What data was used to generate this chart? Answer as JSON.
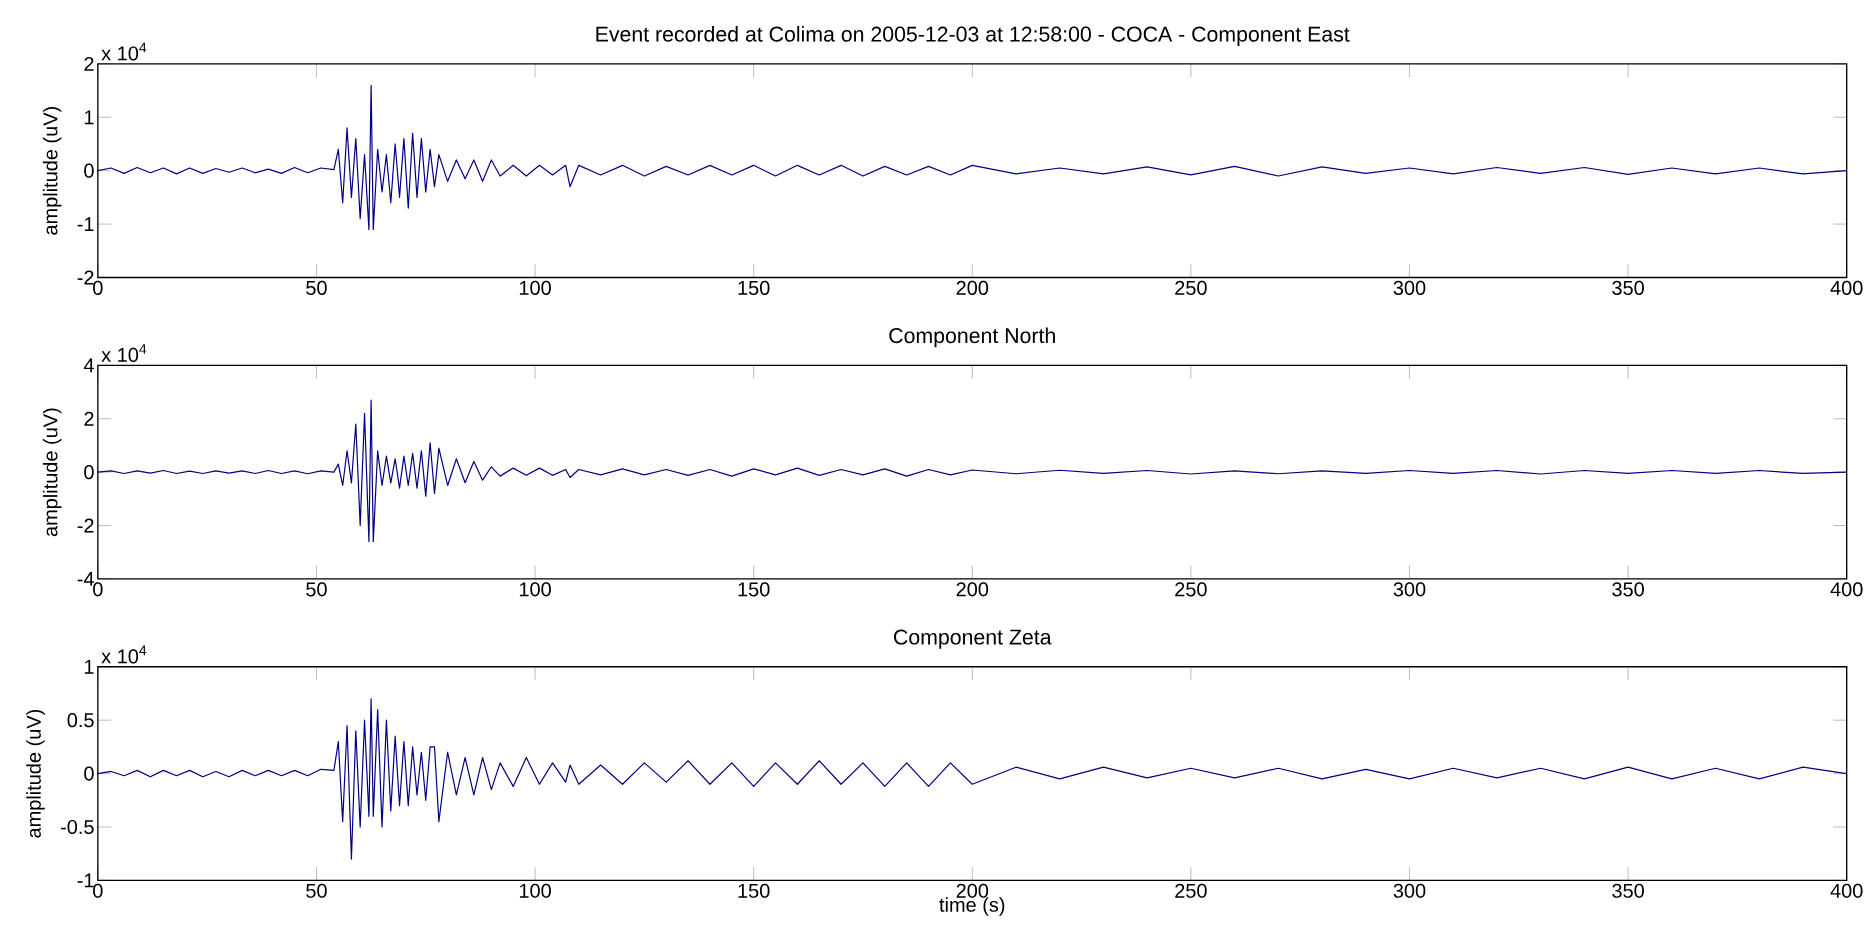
{
  "chart_data": [
    {
      "type": "line",
      "title": "Event recorded at Colima on 2005-12-03 at 12:58:00 - COCA - Component East",
      "ylabel": "amplitude (uV)",
      "annotations": [
        "x 10$^{4}$"
      ],
      "xlim": [
        0,
        400
      ],
      "ylim": [
        -2,
        2
      ],
      "xticks": [
        0,
        50,
        100,
        150,
        200,
        250,
        300,
        350,
        400
      ],
      "yticks": [
        -2,
        -1,
        0,
        1,
        2
      ],
      "x": [
        0,
        3,
        6,
        9,
        12,
        15,
        18,
        21,
        24,
        27,
        30,
        33,
        36,
        39,
        42,
        45,
        48,
        51,
        54,
        55,
        56,
        57,
        58,
        59,
        60,
        61,
        62,
        62.5,
        63,
        64,
        65,
        66,
        67,
        68,
        69,
        70,
        71,
        72,
        73,
        74,
        75,
        76,
        77,
        78,
        80,
        82,
        84,
        86,
        88,
        90,
        92,
        95,
        98,
        101,
        104,
        107,
        108,
        110,
        115,
        120,
        125,
        130,
        135,
        140,
        145,
        150,
        155,
        160,
        165,
        170,
        175,
        180,
        185,
        190,
        195,
        200,
        210,
        220,
        230,
        240,
        250,
        260,
        270,
        280,
        290,
        300,
        310,
        320,
        330,
        340,
        350,
        360,
        370,
        380,
        390,
        400
      ],
      "series": [
        {
          "color": "#000080",
          "values": [
            0,
            0.05,
            -0.05,
            0.06,
            -0.04,
            0.05,
            -0.06,
            0.05,
            -0.05,
            0.04,
            -0.03,
            0.05,
            -0.04,
            0.03,
            -0.05,
            0.06,
            -0.04,
            0.05,
            0.02,
            0.4,
            -0.6,
            0.8,
            -0.5,
            0.6,
            -0.9,
            0.3,
            -1.1,
            1.6,
            -1.1,
            0.4,
            -0.4,
            0.3,
            -0.6,
            0.5,
            -0.5,
            0.6,
            -0.7,
            0.7,
            -0.5,
            0.6,
            -0.4,
            0.4,
            -0.3,
            0.3,
            -0.2,
            0.2,
            -0.15,
            0.2,
            -0.2,
            0.2,
            -0.1,
            0.1,
            -0.1,
            0.1,
            -0.08,
            0.1,
            -0.3,
            0.1,
            -0.08,
            0.1,
            -0.1,
            0.08,
            -0.08,
            0.1,
            -0.08,
            0.1,
            -0.1,
            0.1,
            -0.08,
            0.1,
            -0.1,
            0.08,
            -0.08,
            0.08,
            -0.08,
            0.1,
            -0.06,
            0.05,
            -0.06,
            0.07,
            -0.08,
            0.08,
            -0.1,
            0.07,
            -0.05,
            0.05,
            -0.06,
            0.06,
            -0.05,
            0.06,
            -0.07,
            0.05,
            -0.06,
            0.05,
            -0.06,
            0
          ]
        }
      ]
    },
    {
      "type": "line",
      "title": "Component North",
      "ylabel": "amplitude (uV)",
      "annotations": [
        "x 10$^{4}$"
      ],
      "xlim": [
        0,
        400
      ],
      "ylim": [
        -4,
        4
      ],
      "xticks": [
        0,
        50,
        100,
        150,
        200,
        250,
        300,
        350,
        400
      ],
      "yticks": [
        -4,
        -2,
        0,
        2,
        4
      ],
      "x": [
        0,
        3,
        6,
        9,
        12,
        15,
        18,
        21,
        24,
        27,
        30,
        33,
        36,
        39,
        42,
        45,
        48,
        51,
        54,
        55,
        56,
        57,
        58,
        59,
        60,
        61,
        62,
        62.5,
        63,
        64,
        65,
        66,
        67,
        68,
        69,
        70,
        71,
        72,
        73,
        74,
        75,
        76,
        77,
        78,
        80,
        82,
        84,
        86,
        88,
        90,
        92,
        95,
        98,
        101,
        104,
        107,
        108,
        110,
        115,
        120,
        125,
        130,
        135,
        140,
        145,
        150,
        155,
        160,
        165,
        170,
        175,
        180,
        185,
        190,
        195,
        200,
        210,
        220,
        230,
        240,
        250,
        260,
        270,
        280,
        290,
        300,
        310,
        320,
        330,
        340,
        350,
        360,
        370,
        380,
        390,
        400
      ],
      "series": [
        {
          "color": "#000080",
          "values": [
            0,
            0.05,
            -0.05,
            0.05,
            -0.04,
            0.06,
            -0.05,
            0.04,
            -0.05,
            0.05,
            -0.04,
            0.05,
            -0.05,
            0.06,
            -0.05,
            0.05,
            -0.06,
            0.05,
            0,
            0.3,
            -0.5,
            0.8,
            -0.4,
            1.8,
            -2.0,
            2.2,
            -2.6,
            2.7,
            -2.6,
            0.8,
            -0.5,
            0.6,
            -0.4,
            0.5,
            -0.6,
            0.6,
            -0.5,
            0.7,
            -0.6,
            0.8,
            -0.9,
            1.1,
            -0.8,
            0.9,
            -0.5,
            0.5,
            -0.4,
            0.4,
            -0.3,
            0.2,
            -0.15,
            0.15,
            -0.12,
            0.15,
            -0.12,
            0.1,
            -0.2,
            0.1,
            -0.1,
            0.12,
            -0.1,
            0.1,
            -0.12,
            0.1,
            -0.15,
            0.12,
            -0.1,
            0.15,
            -0.12,
            0.1,
            -0.1,
            0.12,
            -0.15,
            0.1,
            -0.1,
            0.08,
            -0.06,
            0.07,
            -0.05,
            0.06,
            -0.07,
            0.05,
            -0.06,
            0.05,
            -0.05,
            0.06,
            -0.05,
            0.06,
            -0.07,
            0.06,
            -0.05,
            0.06,
            -0.05,
            0.06,
            -0.05,
            0
          ]
        }
      ]
    },
    {
      "type": "line",
      "title": "Component Zeta",
      "xlabel": "time (s)",
      "ylabel": "amplitude (uV)",
      "annotations": [
        "x 10$^{4}$"
      ],
      "xlim": [
        0,
        400
      ],
      "ylim": [
        -1,
        1
      ],
      "xticks": [
        0,
        50,
        100,
        150,
        200,
        250,
        300,
        350,
        400
      ],
      "yticks": [
        -1,
        -0.5,
        0,
        0.5,
        1
      ],
      "x": [
        0,
        3,
        6,
        9,
        12,
        15,
        18,
        21,
        24,
        27,
        30,
        33,
        36,
        39,
        42,
        45,
        48,
        51,
        54,
        55,
        56,
        57,
        58,
        59,
        60,
        61,
        62,
        62.5,
        63,
        64,
        65,
        66,
        67,
        68,
        69,
        70,
        71,
        72,
        73,
        74,
        75,
        76,
        77,
        78,
        80,
        82,
        84,
        86,
        88,
        90,
        92,
        95,
        98,
        101,
        104,
        107,
        108,
        110,
        115,
        120,
        125,
        130,
        135,
        140,
        145,
        150,
        155,
        160,
        165,
        170,
        175,
        180,
        185,
        190,
        195,
        200,
        210,
        220,
        230,
        240,
        250,
        260,
        270,
        280,
        290,
        300,
        310,
        320,
        330,
        340,
        350,
        360,
        370,
        380,
        390,
        400
      ],
      "series": [
        {
          "color": "#000080",
          "values": [
            0,
            0.02,
            -0.02,
            0.03,
            -0.03,
            0.03,
            -0.02,
            0.03,
            -0.03,
            0.02,
            -0.03,
            0.03,
            -0.02,
            0.03,
            -0.02,
            0.03,
            -0.02,
            0.04,
            0.03,
            0.3,
            -0.45,
            0.45,
            -0.8,
            0.4,
            -0.5,
            0.5,
            -0.4,
            0.7,
            -0.4,
            0.6,
            -0.5,
            0.5,
            -0.35,
            0.35,
            -0.3,
            0.3,
            -0.3,
            0.25,
            -0.2,
            0.2,
            -0.25,
            0.25,
            0.25,
            -0.45,
            0.2,
            -0.2,
            0.15,
            -0.2,
            0.15,
            -0.15,
            0.1,
            -0.12,
            0.15,
            -0.1,
            0.1,
            -0.08,
            0.08,
            -0.1,
            0.08,
            -0.1,
            0.1,
            -0.08,
            0.12,
            -0.1,
            0.1,
            -0.12,
            0.1,
            -0.1,
            0.12,
            -0.1,
            0.1,
            -0.12,
            0.1,
            -0.12,
            0.1,
            -0.1,
            0.06,
            -0.05,
            0.06,
            -0.04,
            0.05,
            -0.04,
            0.05,
            -0.05,
            0.04,
            -0.05,
            0.05,
            -0.04,
            0.05,
            -0.05,
            0.06,
            -0.05,
            0.05,
            -0.05,
            0.06,
            0
          ]
        }
      ]
    }
  ]
}
